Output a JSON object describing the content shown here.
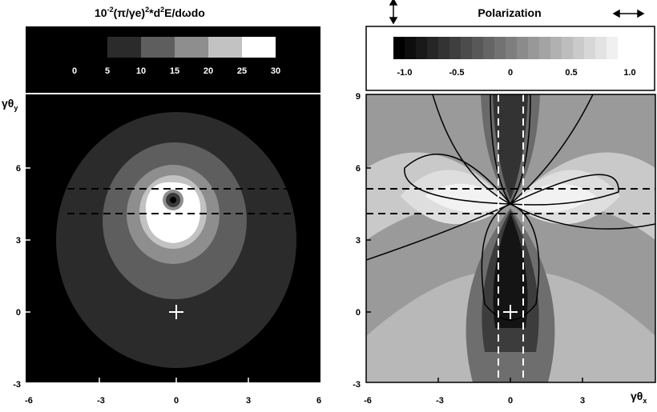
{
  "left_panel": {
    "title_prefix": "10",
    "title_exp1": "-2",
    "title_mid": "(π/γe)",
    "title_exp2": "2",
    "title_mid2": "*d",
    "title_exp3": "2",
    "title_tail": "E/dωdo",
    "y_axis_symbol": "γθ",
    "y_axis_sub": "y",
    "colorbar_ticks": [
      "0",
      "5",
      "10",
      "15",
      "20",
      "25",
      "30"
    ],
    "colorbar_colors": [
      "#2b2b2b",
      "#5e5e5e",
      "#8e8e8e",
      "#c2c2c2",
      "#ffffff"
    ],
    "y_ticks": [
      "-3",
      "0",
      "3",
      "6"
    ],
    "x_ticks": [
      "-6",
      "-3",
      "0",
      "3",
      "6"
    ]
  },
  "right_panel": {
    "title": "Polarization",
    "x_axis_symbol": "γθ",
    "x_axis_sub": "x",
    "colorbar_ticks": [
      "-1.0",
      "-0.5",
      "0",
      "0.5",
      "1.0"
    ],
    "y_ticks": [
      "-3",
      "0",
      "3",
      "6",
      "9"
    ],
    "x_ticks": [
      "-6",
      "-3",
      "0",
      "3"
    ],
    "vertical_arrow_icon": "double-arrow-vertical-icon",
    "horizontal_arrow_icon": "double-arrow-horizontal-icon"
  }
}
